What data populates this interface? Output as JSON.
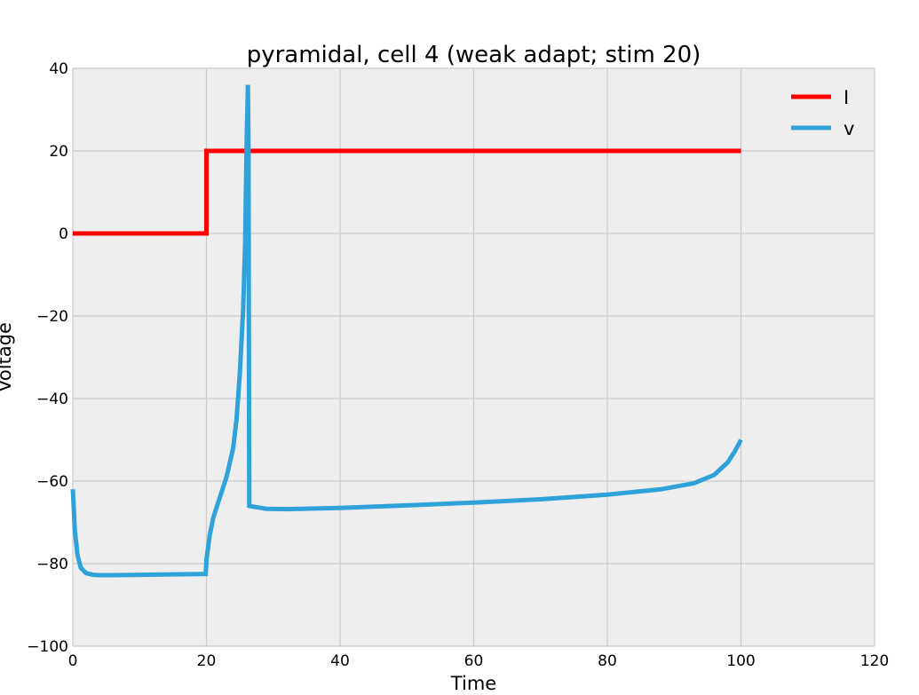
{
  "chart_data": {
    "type": "line",
    "title": "pyramidal, cell 4 (weak adapt; stim 20)",
    "xlabel": "Time",
    "ylabel": "Voltage",
    "xlim": [
      0,
      120
    ],
    "ylim": [
      -100,
      40
    ],
    "xticks": [
      0,
      20,
      40,
      60,
      80,
      100,
      120
    ],
    "yticks": [
      -100,
      -80,
      -60,
      -40,
      -20,
      0,
      20,
      40
    ],
    "xtick_labels": [
      "0",
      "20",
      "40",
      "60",
      "80",
      "100",
      "120"
    ],
    "ytick_labels": [
      "−100",
      "−80",
      "−60",
      "−40",
      "−20",
      "0",
      "20",
      "40"
    ],
    "grid": true,
    "legend_position": "top-right",
    "background": "#eeeeee",
    "grid_color": "#cbcbcb",
    "series": [
      {
        "name": "I",
        "color": "#ff0000",
        "x": [
          0,
          20,
          20,
          100
        ],
        "y": [
          0,
          0,
          20,
          20
        ]
      },
      {
        "name": "v",
        "color": "#30a2da",
        "x": [
          0,
          0.3,
          0.7,
          1.2,
          2,
          3,
          4,
          6,
          10,
          15,
          19.9,
          20,
          20.5,
          21,
          22,
          23,
          24,
          24.5,
          25,
          25.5,
          25.8,
          26.0,
          26.2,
          26.3,
          26.4,
          27,
          29,
          32,
          40,
          50,
          60,
          70,
          80,
          88,
          93,
          96,
          98,
          99,
          100
        ],
        "y": [
          -62,
          -72,
          -78,
          -81,
          -82.3,
          -82.7,
          -82.8,
          -82.8,
          -82.7,
          -82.6,
          -82.5,
          -79,
          -73,
          -69,
          -64,
          -59,
          -52,
          -45,
          -34,
          -18,
          -2,
          20,
          36,
          20,
          -66,
          -66.2,
          -66.7,
          -66.8,
          -66.5,
          -65.9,
          -65.2,
          -64.4,
          -63.3,
          -62.0,
          -60.5,
          -58.5,
          -55.5,
          -53,
          -50
        ]
      }
    ]
  }
}
